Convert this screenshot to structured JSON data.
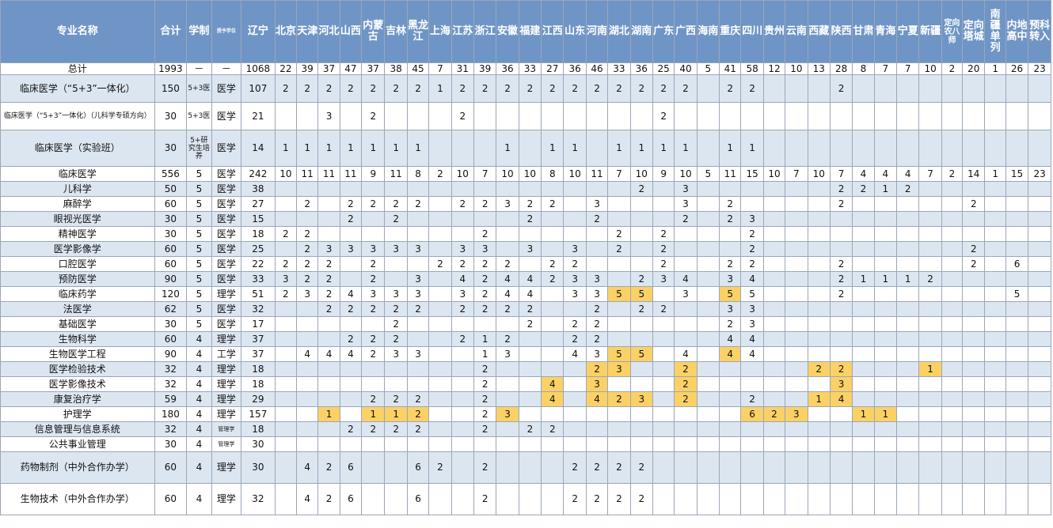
{
  "table": {
    "headers": [
      "专业名称",
      "合计",
      "学制",
      "授予学位",
      "辽宁",
      "北京",
      "天津",
      "河北",
      "山西",
      "内蒙古",
      "吉林",
      "黑龙江",
      "上海",
      "江苏",
      "浙江",
      "安徽",
      "福建",
      "江西",
      "山东",
      "河南",
      "湖北",
      "湖南",
      "广东",
      "广西",
      "海南",
      "重庆",
      "四川",
      "贵州",
      "云南",
      "西藏",
      "陕西",
      "甘肃",
      "青海",
      "宁夏",
      "新疆",
      "定向农八师",
      "定向塔城",
      "南疆单列",
      "内地高中",
      "预科转入"
    ],
    "rows": [
      {
        "cells": [
          "总计",
          "1993",
          "－",
          "－",
          "1068",
          "22",
          "39",
          "37",
          "47",
          "37",
          "38",
          "45",
          "7",
          "31",
          "39",
          "36",
          "33",
          "27",
          "36",
          "46",
          "33",
          "36",
          "25",
          "40",
          "5",
          "41",
          "58",
          "12",
          "10",
          "13",
          "28",
          "8",
          "7",
          "7",
          "10",
          "2",
          "20",
          "1",
          "26",
          "23"
        ],
        "hl": [],
        "h": 15
      },
      {
        "cells": [
          "临床医学（“5+3”一体化）",
          "150",
          "5+3医",
          "医学",
          "107",
          "2",
          "2",
          "2",
          "2",
          "2",
          "2",
          "2",
          "1",
          "2",
          "2",
          "2",
          "2",
          "2",
          "2",
          "2",
          "2",
          "2",
          "2",
          "2",
          "",
          "2",
          "2",
          "",
          "",
          "",
          "2",
          "",
          "",
          "",
          "",
          "",
          "",
          "",
          "",
          ""
        ],
        "hl": [],
        "h": 35
      },
      {
        "cells": [
          "临床医学（“5+3”一体化）（儿科学专硕方向）",
          "30",
          "5+3医",
          "医学",
          "21",
          "",
          "",
          "3",
          "",
          "2",
          "",
          "",
          "",
          "2",
          "",
          "",
          "",
          "",
          "",
          "",
          "",
          "",
          "2",
          "",
          "",
          "",
          "",
          "",
          "",
          "",
          "",
          "",
          "",
          "",
          "",
          "",
          "",
          "",
          "",
          ""
        ],
        "hl": [],
        "h": 35
      },
      {
        "cells": [
          "临床医学（实验班）",
          "30",
          "5+研究生培养",
          "医学",
          "14",
          "1",
          "1",
          "1",
          "1",
          "1",
          "1",
          "1",
          "",
          "",
          "",
          "1",
          "",
          "1",
          "1",
          "",
          "1",
          "1",
          "1",
          "1",
          "",
          "1",
          "1",
          "",
          "",
          "",
          "",
          "",
          "",
          "",
          "",
          "",
          "",
          "",
          "",
          ""
        ],
        "hl": [],
        "h": 46
      },
      {
        "cells": [
          "临床医学",
          "556",
          "5",
          "医学",
          "242",
          "10",
          "11",
          "11",
          "11",
          "9",
          "11",
          "8",
          "2",
          "10",
          "7",
          "10",
          "10",
          "8",
          "10",
          "11",
          "7",
          "10",
          "9",
          "10",
          "5",
          "11",
          "15",
          "10",
          "7",
          "10",
          "7",
          "4",
          "4",
          "4",
          "7",
          "2",
          "14",
          "1",
          "15",
          "23"
        ],
        "hl": [],
        "h": 19
      },
      {
        "cells": [
          "儿科学",
          "50",
          "5",
          "医学",
          "38",
          "",
          "",
          "",
          "",
          "",
          "",
          "",
          "",
          "",
          "",
          "",
          "",
          "",
          "",
          "",
          "",
          "2",
          "",
          "3",
          "",
          "",
          "",
          "",
          "",
          "",
          "2",
          "2",
          "1",
          "2",
          "",
          "",
          "",
          "",
          "",
          ""
        ],
        "hl": [],
        "h": 19
      },
      {
        "cells": [
          "麻醉学",
          "60",
          "5",
          "医学",
          "27",
          "",
          "2",
          "",
          "2",
          "2",
          "2",
          "2",
          "",
          "2",
          "2",
          "3",
          "2",
          "2",
          "",
          "3",
          "",
          "",
          "",
          "3",
          "",
          "2",
          "",
          "",
          "",
          "",
          "2",
          "",
          "",
          "",
          "",
          "",
          "2",
          "",
          "",
          ""
        ],
        "hl": [],
        "h": 19
      },
      {
        "cells": [
          "眼视光医学",
          "30",
          "5",
          "医学",
          "15",
          "",
          "",
          "",
          "2",
          "",
          "2",
          "",
          "",
          "",
          "",
          "",
          "2",
          "",
          "",
          "2",
          "",
          "",
          "",
          "2",
          "",
          "2",
          "3",
          "",
          "",
          "",
          "",
          "",
          "",
          "",
          "",
          "",
          "",
          "",
          "",
          ""
        ],
        "hl": [],
        "h": 19
      },
      {
        "cells": [
          "精神医学",
          "30",
          "5",
          "医学",
          "18",
          "2",
          "2",
          "",
          "",
          "",
          "",
          "",
          "",
          "",
          "2",
          "",
          "",
          "",
          "",
          "",
          "2",
          "",
          "2",
          "",
          "",
          "",
          "2",
          "",
          "",
          "",
          "",
          "",
          "",
          "",
          "",
          "",
          "",
          "",
          "",
          ""
        ],
        "hl": [],
        "h": 19
      },
      {
        "cells": [
          "医学影像学",
          "60",
          "5",
          "医学",
          "25",
          "",
          "2",
          "3",
          "3",
          "3",
          "3",
          "3",
          "",
          "3",
          "3",
          "",
          "3",
          "",
          "3",
          "",
          "2",
          "",
          "2",
          "",
          "",
          "",
          "2",
          "",
          "",
          "",
          "",
          "",
          "",
          "",
          "",
          "",
          "2",
          "",
          "",
          ""
        ],
        "hl": [],
        "h": 19
      },
      {
        "cells": [
          "口腔医学",
          "60",
          "5",
          "医学",
          "22",
          "2",
          "2",
          "2",
          "",
          "2",
          "",
          "",
          "2",
          "2",
          "2",
          "2",
          "",
          "2",
          "2",
          "",
          "",
          "",
          "2",
          "",
          "",
          "2",
          "2",
          "",
          "",
          "",
          "2",
          "",
          "",
          "",
          "",
          "",
          "2",
          "",
          "6",
          ""
        ],
        "hl": [],
        "h": 19
      },
      {
        "cells": [
          "预防医学",
          "90",
          "5",
          "医学",
          "33",
          "3",
          "2",
          "2",
          "",
          "2",
          "",
          "3",
          "",
          "4",
          "2",
          "4",
          "4",
          "2",
          "3",
          "3",
          "",
          "2",
          "3",
          "4",
          "",
          "3",
          "4",
          "",
          "",
          "",
          "2",
          "1",
          "1",
          "1",
          "2",
          "",
          "",
          "",
          "",
          ""
        ],
        "hl": [],
        "h": 19
      },
      {
        "cells": [
          "临床药学",
          "120",
          "5",
          "理学",
          "51",
          "2",
          "3",
          "2",
          "4",
          "3",
          "3",
          "3",
          "",
          "3",
          "2",
          "4",
          "4",
          "",
          "3",
          "3",
          "5",
          "5",
          "",
          "3",
          "",
          "5",
          "5",
          "",
          "",
          "",
          "2",
          "",
          "",
          "",
          "",
          "",
          "",
          "",
          "5",
          ""
        ],
        "hl": [
          20,
          21,
          25
        ],
        "h": 19
      },
      {
        "cells": [
          "法医学",
          "62",
          "5",
          "医学",
          "32",
          "",
          "",
          "2",
          "2",
          "2",
          "2",
          "2",
          "",
          "2",
          "2",
          "2",
          "2",
          "",
          "",
          "2",
          "",
          "2",
          "2",
          "",
          "",
          "3",
          "3",
          "",
          "",
          "",
          "",
          "",
          "",
          "",
          "",
          "",
          "",
          "",
          "",
          ""
        ],
        "hl": [],
        "h": 19
      },
      {
        "cells": [
          "基础医学",
          "30",
          "5",
          "医学",
          "17",
          "",
          "",
          "",
          "",
          "",
          "2",
          "",
          "",
          "",
          "",
          "",
          "2",
          "",
          "2",
          "2",
          "",
          "",
          "",
          "",
          "",
          "2",
          "3",
          "",
          "",
          "",
          "",
          "",
          "",
          "",
          "",
          "",
          "",
          "",
          "",
          ""
        ],
        "hl": [],
        "h": 19
      },
      {
        "cells": [
          "生物科学",
          "60",
          "4",
          "理学",
          "37",
          "",
          "",
          "",
          "2",
          "2",
          "2",
          "",
          "",
          "2",
          "1",
          "2",
          "",
          "",
          "2",
          "2",
          "",
          "",
          "",
          "",
          "",
          "4",
          "4",
          "",
          "",
          "",
          "",
          "",
          "",
          "",
          "",
          "",
          "",
          "",
          "",
          ""
        ],
        "hl": [],
        "h": 19
      },
      {
        "cells": [
          "生物医学工程",
          "90",
          "4",
          "工学",
          "37",
          "",
          "4",
          "4",
          "4",
          "2",
          "3",
          "3",
          "",
          "",
          "1",
          "3",
          "",
          "",
          "4",
          "3",
          "5",
          "5",
          "",
          "4",
          "",
          "4",
          "4",
          "",
          "",
          "",
          "",
          "",
          "",
          "",
          "",
          "",
          "",
          "",
          "",
          ""
        ],
        "hl": [
          20,
          21,
          25
        ],
        "h": 19
      },
      {
        "cells": [
          "医学检验技术",
          "32",
          "4",
          "理学",
          "18",
          "",
          "",
          "",
          "",
          "",
          "",
          "",
          "",
          "",
          "2",
          "",
          "",
          "",
          "",
          "2",
          "3",
          "",
          "",
          "2",
          "",
          "",
          "",
          "",
          "",
          "2",
          "2",
          "",
          "",
          "",
          "1",
          "",
          "",
          "",
          "",
          ""
        ],
        "hl": [
          19,
          20,
          23,
          29,
          30,
          34
        ],
        "h": 19
      },
      {
        "cells": [
          "医学影像技术",
          "32",
          "4",
          "理学",
          "18",
          "",
          "",
          "",
          "",
          "",
          "",
          "",
          "",
          "",
          "2",
          "",
          "",
          "4",
          "",
          "3",
          "",
          "",
          "",
          "2",
          "",
          "",
          "",
          "",
          "",
          "",
          "3",
          "",
          "",
          "",
          "",
          "",
          "",
          "",
          "",
          ""
        ],
        "hl": [
          17,
          19,
          23,
          30
        ],
        "h": 19
      },
      {
        "cells": [
          "康复治疗学",
          "59",
          "4",
          "理学",
          "29",
          "",
          "",
          "",
          "",
          "2",
          "2",
          "2",
          "",
          "",
          "2",
          "",
          "",
          "4",
          "",
          "4",
          "2",
          "3",
          "",
          "2",
          "",
          "",
          "2",
          "",
          "",
          "1",
          "4",
          "",
          "",
          "",
          "",
          "",
          "",
          "",
          "",
          ""
        ],
        "hl": [
          17,
          19,
          20,
          21,
          23,
          29,
          30
        ],
        "h": 19
      },
      {
        "cells": [
          "护理学",
          "180",
          "4",
          "理学",
          "157",
          "",
          "",
          "1",
          "",
          "1",
          "1",
          "2",
          "",
          "",
          "2",
          "3",
          "",
          "",
          "",
          "",
          "",
          "",
          "",
          "",
          "",
          "",
          "6",
          "2",
          "3",
          "",
          "",
          "1",
          "1",
          "",
          "",
          "",
          "",
          "",
          "",
          ""
        ],
        "hl": [
          7,
          9,
          10,
          11,
          15,
          26,
          27,
          28,
          31,
          32
        ],
        "h": 19
      },
      {
        "cells": [
          "信息管理与信息系统",
          "32",
          "4",
          "管理学",
          "18",
          "",
          "",
          "",
          "2",
          "2",
          "2",
          "2",
          "",
          "",
          "2",
          "",
          "2",
          "2",
          "",
          "",
          "",
          "",
          "",
          "",
          "",
          "",
          "",
          "",
          "",
          "",
          "",
          "",
          "",
          "",
          "",
          "",
          "",
          "",
          "",
          ""
        ],
        "hl": [],
        "h": 19
      },
      {
        "cells": [
          "公共事业管理",
          "30",
          "4",
          "管理学",
          "30",
          "",
          "",
          "",
          "",
          "",
          "",
          "",
          "",
          "",
          "",
          "",
          "",
          "",
          "",
          "",
          "",
          "",
          "",
          "",
          "",
          "",
          "",
          "",
          "",
          "",
          "",
          "",
          "",
          "",
          "",
          "",
          "",
          "",
          "",
          ""
        ],
        "hl": [],
        "h": 19
      },
      {
        "cells": [
          "药物制剂（中外合作办学）",
          "60",
          "4",
          "理学",
          "30",
          "",
          "4",
          "2",
          "6",
          "",
          "",
          "6",
          "2",
          "",
          "2",
          "",
          "",
          "",
          "2",
          "2",
          "2",
          "2",
          "",
          "",
          "",
          "",
          "",
          "",
          "",
          "",
          "",
          "",
          "",
          "",
          "",
          "",
          "",
          "",
          "",
          ""
        ],
        "hl": [],
        "h": 40
      },
      {
        "cells": [
          "生物技术（中外合作办学）",
          "60",
          "4",
          "理学",
          "32",
          "",
          "4",
          "2",
          "6",
          "",
          "",
          "6",
          "",
          "",
          "2",
          "",
          "",
          "",
          "2",
          "2",
          "2",
          "2",
          "",
          "",
          "",
          "",
          "",
          "",
          "",
          "",
          "",
          "",
          "",
          "",
          "",
          "",
          "",
          "",
          "",
          ""
        ],
        "hl": [],
        "h": 40
      }
    ]
  }
}
